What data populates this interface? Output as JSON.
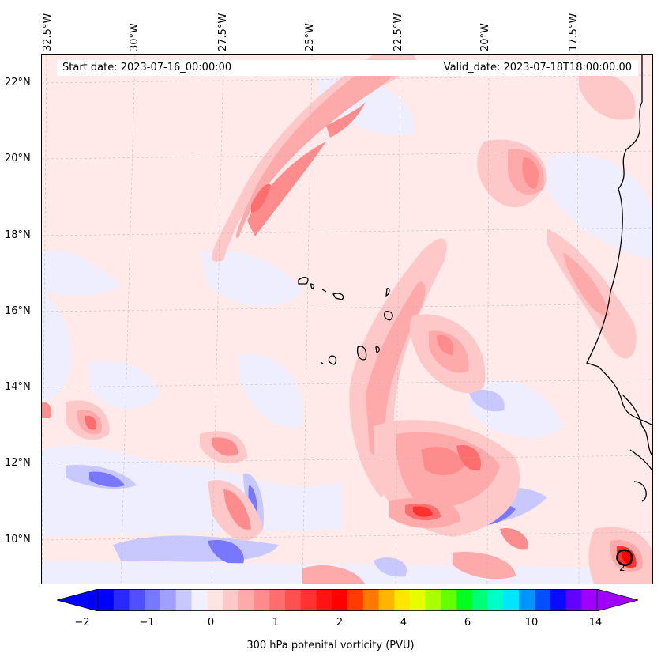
{
  "map": {
    "start_date": "Start date: 2023-07-16_00:00:00",
    "valid_date": "Valid_date: 2023-07-18T18:00:00.00",
    "longitude_labels": [
      "32.5°W",
      "30°W",
      "27.5°W",
      "25°W",
      "22.5°W",
      "20°W",
      "17.5°W"
    ],
    "latitude_labels": [
      "22°N",
      "20°N",
      "18°N",
      "16°N",
      "14°N",
      "12°N",
      "10°N"
    ],
    "field": "300 hPa potenital vorticity (PVU)",
    "contour_label": "2"
  },
  "colorbar": {
    "label": "300 hPa potenital vorticity (PVU)",
    "ticks": [
      "−2",
      "−1",
      "0",
      "1",
      "2",
      "4",
      "6",
      "10",
      "14"
    ],
    "extend": "both",
    "colors": [
      "#0000ff",
      "#2828ff",
      "#5050ff",
      "#7878ff",
      "#a0a0ff",
      "#c8c8ff",
      "#f0f0ff",
      "#ffe4e4",
      "#ffc8c8",
      "#ffaaaa",
      "#ff8c8c",
      "#ff6e6e",
      "#ff5050",
      "#ff3232",
      "#ff1414",
      "#ff0000",
      "#ff3c00",
      "#ff7800",
      "#ffb400",
      "#ffe600",
      "#e6ff00",
      "#aaff00",
      "#64ff00",
      "#00ff1e",
      "#00ff78",
      "#00ffc8",
      "#00e6ff",
      "#0096ff",
      "#0050ff",
      "#0a0aff",
      "#6400ff",
      "#a000ff"
    ]
  },
  "colors": {
    "coastline": "#000000",
    "gridline": "#b0b0b0"
  }
}
